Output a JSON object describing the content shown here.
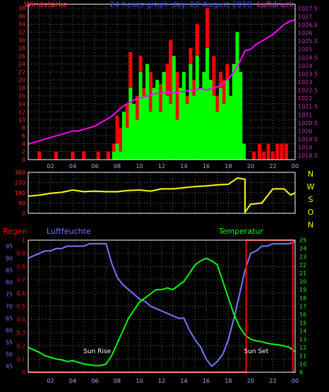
{
  "colors": {
    "background": "#000000",
    "grid": "#6b6b6b",
    "axis": "#ffffff",
    "wind_axis": "#ff2a2a",
    "pressure_axis": "#cc33cc",
    "title": "#3344ff",
    "wind_gust": "#ff0000",
    "wind_speed": "#00ff00",
    "pressure": "#ff00ff",
    "direction": "#ffff00",
    "direction_axis": "#ffff00",
    "rain": "#ff0000",
    "humidity": "#7777ff",
    "temperature": "#00ff00",
    "x_ticks": "#aaaaff"
  },
  "chart_data": [
    {
      "type": "line",
      "title": "24 hours graph day: 20 August 2018",
      "ylabel": "Windstärke",
      "y2label": "Luftdruck",
      "x_tick_labels": [
        "02",
        "04",
        "06",
        "08",
        "10",
        "12",
        "14",
        "16",
        "18",
        "20",
        "22",
        "00"
      ],
      "y_ticks": [
        0,
        2,
        4,
        6,
        8,
        10,
        12,
        14,
        16,
        18,
        20,
        22,
        24,
        26,
        28,
        30,
        32,
        34,
        36,
        38
      ],
      "y2_ticks": [
        "1018.5",
        "1019",
        "1019.5",
        "1020",
        "1020.5",
        "1021",
        "1021.5",
        "1022",
        "1022.5",
        "1023",
        "1023.5",
        "1024",
        "1024.5",
        "1025",
        "1025.5",
        "1026",
        "1026.5",
        "1027",
        "1027.5"
      ],
      "ylim": [
        0,
        39
      ],
      "y2lim": [
        1018.25,
        1027.75
      ],
      "xlim": [
        0,
        24
      ],
      "grid": true,
      "series": [
        {
          "name": "Luftdruck",
          "x": [
            0,
            0.5,
            1,
            1.5,
            2,
            2.5,
            3,
            3.5,
            4,
            4.5,
            5,
            5.5,
            6,
            6.5,
            7,
            7.5,
            8,
            8.5,
            9,
            9.5,
            10,
            10.5,
            11,
            11.5,
            12,
            12.5,
            13,
            13.5,
            14,
            14.5,
            15,
            15.5,
            16,
            16.5,
            17,
            17.5,
            18,
            18.5,
            19,
            19.5,
            20,
            20.5,
            21,
            21.5,
            22,
            22.5,
            23,
            23.5,
            24
          ],
          "values": [
            1019.2,
            1019.3,
            1019.4,
            1019.5,
            1019.6,
            1019.7,
            1019.8,
            1019.9,
            1020.0,
            1020.0,
            1020.1,
            1020.2,
            1020.3,
            1020.5,
            1020.7,
            1020.9,
            1021.2,
            1021.5,
            1021.7,
            1021.9,
            1022.0,
            1022.1,
            1022.2,
            1022.3,
            1022.3,
            1022.4,
            1022.3,
            1022.4,
            1022.4,
            1022.5,
            1022.5,
            1022.6,
            1022.5,
            1022.6,
            1022.7,
            1022.9,
            1023.2,
            1023.6,
            1024.2,
            1024.9,
            1025.0,
            1025.3,
            1025.5,
            1025.7,
            1025.9,
            1026.2,
            1026.5,
            1026.7,
            1026.8
          ]
        },
        {
          "name": "Wind gust",
          "x": [
            1.0,
            2.5,
            4.0,
            5.0,
            6.3,
            7.2,
            7.7,
            8.0,
            8.3,
            8.6,
            8.9,
            9.2,
            9.5,
            9.8,
            10.1,
            10.4,
            10.7,
            11.0,
            11.3,
            11.6,
            11.9,
            12.2,
            12.5,
            12.8,
            13.1,
            13.4,
            13.7,
            14.0,
            14.3,
            14.6,
            14.9,
            15.2,
            15.5,
            15.8,
            16.1,
            16.4,
            16.7,
            17.0,
            17.3,
            17.6,
            17.9,
            18.2,
            18.5,
            18.8,
            19.1,
            19.4,
            20.3,
            20.8,
            21.2,
            21.6,
            22.0,
            22.4,
            22.8,
            23.2
          ],
          "values": [
            2,
            2,
            2,
            2,
            2,
            2,
            4,
            11,
            8,
            6,
            14,
            27,
            12,
            16,
            26,
            18,
            20,
            22,
            16,
            14,
            19,
            10,
            24,
            30,
            14,
            22,
            9,
            14,
            16,
            28,
            20,
            34,
            14,
            18,
            38,
            12,
            26,
            16,
            22,
            20,
            24,
            10,
            14,
            18,
            12,
            4,
            2,
            4,
            2,
            4,
            2,
            4,
            4,
            4
          ]
        },
        {
          "name": "Wind speed",
          "x": [
            7.7,
            8.0,
            8.3,
            8.6,
            8.9,
            9.2,
            9.5,
            9.8,
            10.1,
            10.4,
            10.7,
            11.0,
            11.3,
            11.6,
            11.9,
            12.2,
            12.5,
            12.8,
            13.1,
            13.4,
            13.7,
            14.0,
            14.3,
            14.6,
            14.9,
            15.2,
            15.5,
            15.8,
            16.1,
            16.4,
            16.7,
            17.0,
            17.3,
            17.6,
            17.9,
            18.2,
            18.5,
            18.8,
            19.1,
            19.4
          ],
          "values": [
            2,
            4,
            2,
            12,
            8,
            18,
            14,
            10,
            22,
            16,
            24,
            12,
            18,
            20,
            12,
            22,
            16,
            14,
            26,
            10,
            18,
            22,
            14,
            24,
            16,
            26,
            18,
            22,
            28,
            20,
            16,
            12,
            18,
            14,
            20,
            16,
            24,
            32,
            22,
            4
          ]
        }
      ]
    },
    {
      "type": "line",
      "ylabel_letters": [
        "N",
        "W",
        "S",
        "O",
        "N"
      ],
      "y_ticks": [
        0,
        90,
        180,
        270,
        360
      ],
      "ylim": [
        0,
        360
      ],
      "xlim": [
        0,
        24
      ],
      "grid": true,
      "series": [
        {
          "name": "Wind direction",
          "x": [
            0,
            1,
            2,
            3,
            4,
            5,
            6,
            7,
            8,
            9,
            10,
            11,
            12,
            13,
            14,
            15,
            16,
            17,
            18,
            18.8,
            19.5,
            19.5,
            20,
            21,
            22,
            23,
            23.6,
            24
          ],
          "values": [
            150,
            160,
            175,
            185,
            205,
            190,
            195,
            190,
            190,
            200,
            205,
            195,
            215,
            215,
            225,
            235,
            240,
            250,
            255,
            310,
            300,
            10,
            80,
            90,
            215,
            215,
            160,
            180
          ]
        }
      ]
    },
    {
      "type": "line",
      "left_label": "Regen",
      "humidity_label": "Luftfeuchte",
      "temperature_label": "Temperatur",
      "rain_ticks": [
        "0",
        "0.1",
        "0.2",
        "0.3",
        "0.4",
        "0.5",
        "0.6",
        "0.7",
        "0.8",
        "0.9",
        "1"
      ],
      "humidity_ticks": [
        45,
        50,
        55,
        60,
        65,
        70,
        75,
        80,
        85,
        90,
        95
      ],
      "temperature_ticks": [
        9,
        10,
        11,
        12,
        13,
        14,
        15,
        16,
        17,
        18,
        19,
        20,
        21,
        22,
        23,
        24,
        25
      ],
      "x_tick_labels": [
        "02",
        "04",
        "06",
        "08",
        "10",
        "12",
        "14",
        "16",
        "18",
        "20",
        "22",
        "00"
      ],
      "xlim": [
        0,
        24
      ],
      "grid": true,
      "annotations": [
        {
          "text": "Sun Rise",
          "x": 6.2
        },
        {
          "text": "Sun Set",
          "x": 20.5
        }
      ],
      "series": [
        {
          "name": "Luftfeuchte",
          "x": [
            0,
            0.5,
            1,
            1.5,
            2,
            2.5,
            3,
            3.5,
            4,
            4.5,
            5,
            5.5,
            6,
            6.5,
            7,
            7.5,
            8,
            8.5,
            9,
            9.5,
            10,
            10.5,
            11,
            11.5,
            12,
            12.5,
            13,
            13.5,
            14,
            14.5,
            15,
            15.5,
            16,
            16.5,
            17,
            17.5,
            18,
            18.5,
            19,
            19.5,
            20,
            20.5,
            21,
            21.5,
            22,
            22.5,
            23,
            23.5,
            24
          ],
          "values": [
            90,
            91,
            92,
            93,
            93,
            94,
            94,
            95,
            95,
            95,
            95,
            96,
            96,
            96,
            96,
            88,
            82,
            79,
            77,
            75,
            73,
            72,
            70,
            69,
            68,
            67,
            66,
            65,
            65,
            60,
            56,
            53,
            48,
            45,
            47,
            50,
            56,
            65,
            75,
            85,
            92,
            93,
            95,
            95,
            96,
            96,
            96,
            96,
            97
          ]
        },
        {
          "name": "Temperatur",
          "x": [
            0,
            0.5,
            1,
            1.5,
            2,
            2.5,
            3,
            3.5,
            4,
            4.5,
            5,
            5.5,
            6,
            6.5,
            7,
            7.5,
            8,
            8.5,
            9,
            9.5,
            10,
            10.5,
            11,
            11.5,
            12,
            12.5,
            13,
            13.5,
            14,
            14.5,
            15,
            15.5,
            16,
            16.5,
            17,
            17.5,
            18,
            18.5,
            19,
            19.5,
            20,
            20.5,
            21,
            21.5,
            22,
            22.5,
            23,
            23.5,
            24
          ],
          "values": [
            12.0,
            11.7,
            11.4,
            11.0,
            10.8,
            10.6,
            10.5,
            10.3,
            10.4,
            10.2,
            10.0,
            9.9,
            9.8,
            9.8,
            10.0,
            11.0,
            12.5,
            14.0,
            15.5,
            16.5,
            17.5,
            18.0,
            18.5,
            19.0,
            19.0,
            19.2,
            19.0,
            19.5,
            20.0,
            21.0,
            22.0,
            22.5,
            22.8,
            22.5,
            22.0,
            20.0,
            18.0,
            16.0,
            14.5,
            13.5,
            13.0,
            12.8,
            12.7,
            12.5,
            12.4,
            12.3,
            12.2,
            12.0,
            11.5
          ]
        },
        {
          "name": "Regen",
          "x": [
            0,
            19.6,
            19.6,
            23.8,
            23.8,
            24
          ],
          "values": [
            0,
            0,
            1,
            1,
            0,
            0
          ]
        }
      ]
    }
  ]
}
